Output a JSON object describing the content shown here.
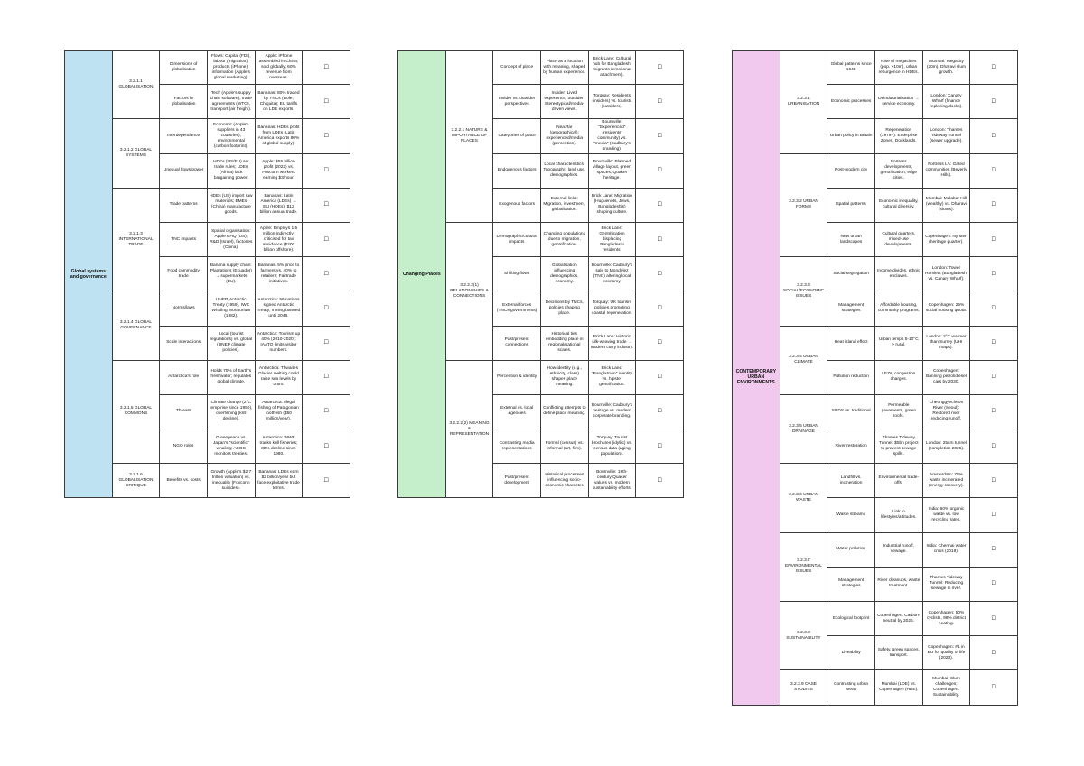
{
  "tables": [
    {
      "topic": "Global systems and governance",
      "groups": [
        {
          "subtopic": "3.2.1.1 GLOBALISATION",
          "rows": [
            [
              "Dimensions of globalisation",
              "Flows: Capital (FDI), labour (migration), products (iPhone), information (Apple's global marketing).",
              "Apple: iPhone assembled in China, sold globally; 60% revenue from overseas.",
              "☐"
            ],
            [
              "Factors in globalisation",
              "Tech (Apple's supply chain software), trade agreements (WTO), transport (air freight).",
              "Bananas: 80% traded by TNCs (Dole, Chiquita); EU tariffs on LDE exports.",
              "☐"
            ]
          ]
        },
        {
          "subtopic": "3.2.1.2 GLOBAL SYSTEMS",
          "rows": [
            [
              "Interdependence",
              "Economic (Apple's suppliers in 43 countries), environmental (carbon footprint).",
              "Bananas: HDEs profit from LDEs (Latin America exports 80% of global supply).",
              "☐"
            ],
            [
              "Unequal flows/power",
              "HDEs (US/EU) set trade rules; LDEs (Africa) lack bargaining power.",
              "Apple: $55 billion profit (2022) vs. Foxconn workers earning $3/hour.",
              "☐"
            ]
          ]
        },
        {
          "subtopic": "3.2.1.3 INTERNATIONAL TRADE",
          "rows": [
            [
              "Trade patterns",
              "HDEs (US) import raw materials; EMEs (China) manufacture goods.",
              "Bananas: Latin America (LDEs) → EU (HDEs); $12 billion annual trade.",
              "☐"
            ],
            [
              "TNC impacts",
              "Spatial organisation: Apple's HQ (US), R&D (Israel), factories (China).",
              "Apple: Employs 1.5 million indirectly; criticised for tax avoidance ($200 billion offshore).",
              "☐"
            ],
            [
              "Food commodity trade",
              "Banana supply chain: Plantations (Ecuador) → supermarkets (EU).",
              "Bananas: 5% price to farmers vs. 40% to retailers; Fairtrade initiatives.",
              "☐"
            ]
          ]
        },
        {
          "subtopic": "3.2.1.4 GLOBAL GOVERNANCE",
          "rows": [
            [
              "Norms/laws",
              "UNEP, Antarctic Treaty (1959), IWC Whaling Moratorium (1982).",
              "Antarctica: 56 nations signed Antarctic Treaty; mining banned until 2048.",
              "☐"
            ],
            [
              "Scale interactions",
              "Local (tourist regulations) vs. global (UNEP climate policies).",
              "Antarctica: Tourism up 40% (2010-2020); IAATO limits visitor numbers.",
              "☐"
            ]
          ]
        },
        {
          "subtopic": "3.2.1.5 GLOBAL COMMONS",
          "rows": [
            [
              "Antarctica's role",
              "Holds 70% of Earth's freshwater; regulates global climate.",
              "Antarctica: Thwaites Glacier melting could raise sea levels by 0.5m.",
              "☐"
            ],
            [
              "Threats",
              "Climate change (2°C temp rise since 1950), overfishing (krill decline).",
              "Antarctica: Illegal fishing of Patagonian toothfish ($50 million/year).",
              "☐"
            ],
            [
              "NGO roles",
              "Greenpeace vs. Japan's \"scientific\" whaling; ASOC monitors treaties.",
              "Antarctica: WWF tracks krill fisheries; 30% decline since 1980.",
              "☐"
            ]
          ]
        },
        {
          "subtopic": "3.2.1.6 GLOBALISATION CRITIQUE",
          "rows": [
            [
              "Benefits vs. costs",
              "Growth (Apple's $2.7 trillion valuation) vs. inequality (Foxconn suicides).",
              "Bananas: LDEs earn $2 billion/year but face exploitative trade terms.",
              "☐"
            ]
          ]
        }
      ]
    },
    {
      "topic": "Changing Places",
      "groups": [
        {
          "subtopic": "3.2.2.1 NATURE & IMPORTANCE OF PLACES",
          "rows": [
            [
              "Concept of place",
              "Place as a location with meaning, shaped by human experience.",
              "Brick Lane: Cultural hub for Bangladeshi migrants (emotional attachment).",
              "☐"
            ],
            [
              "Insider vs. outsider perspectives",
              "Insider: Lived experience; outsider: Stereotypical/media-driven views.",
              "Torquay: Residents (insiders) vs. tourists (outsiders).",
              "☐"
            ],
            [
              "Categories of place",
              "Near/far (geographical); experienced/media (perception).",
              "Bournville: \"Experienced\" (residents' community) vs. \"media\" (Cadbury's branding).",
              "☐"
            ],
            [
              "Endogenous factors",
              "Local characteristics: Topography, land use, demographics.",
              "Bournville: Planned village layout, green spaces, Quaker heritage.",
              "☐"
            ],
            [
              "Exogenous factors",
              "External links: Migration, investment, globalisation.",
              "Brick Lane: Migration (Huguenots, Jews, Bangladeshis) shaping culture.",
              "☐"
            ]
          ]
        },
        {
          "subtopic": "3.2.2.2(1) RELATIONSHIPS & CONNECTIONS",
          "rows": [
            [
              "Demographic/cultural impacts",
              "Changing populations due to migration, gentrification.",
              "Brick Lane: Gentrification displacing Bangladeshi residents.",
              "☐"
            ],
            [
              "Shifting flows",
              "Globalisation influencing demographics, economy.",
              "Bournville: Cadbury's sale to Mondelez (TNC) altering local economy.",
              "☐"
            ],
            [
              "External forces (TNCs/governments)",
              "Decisions by TNCs, policies shaping place.",
              "Torquay: UK tourism policies promoting coastal regeneration.",
              "☐"
            ],
            [
              "Past/present connections",
              "Historical ties embedding place in regional/national scales.",
              "Brick Lane: Historic silk-weaving trade → modern curry industry.",
              "☐"
            ]
          ]
        },
        {
          "subtopic": "3.2.2.2(2) MEANING & REPRESENTATION",
          "rows": [
            [
              "Perception & identity",
              "How identity (e.g., ethnicity, class) shapes place meaning.",
              "Brick Lane: \"Banglatown\" identity vs. hipster gentrification.",
              "☐"
            ],
            [
              "External vs. local agencies",
              "Conflicting attempts to define place meaning.",
              "Bournville: Cadbury's heritage vs. modern corporate branding.",
              "☐"
            ],
            [
              "Contrasting media representations",
              "Formal (census) vs. informal (art, film).",
              "Torquay: Tourist brochures (idyllic) vs. census data (aging population).",
              "☐"
            ],
            [
              "Past/present development",
              "Historical processes influencing socio-economic character.",
              "Bournville: 19th-century Quaker values vs. modern sustainability efforts.",
              "☐"
            ]
          ]
        }
      ]
    },
    {
      "topic": "CONTEMPORARY URBAN ENVIRONMENTS",
      "groups": [
        {
          "subtopic": "3.2.3.1 URBANISATION",
          "rows": [
            [
              "Global patterns since 1945",
              "Rise of megacities (pop. >10m), urban resurgence in HDEs.",
              "Mumbai: Megacity (20m), Dharavi slum growth.",
              "☐"
            ],
            [
              "Economic processes",
              "Deindustrialisation → service economy.",
              "London: Canary Wharf (finance replacing docks).",
              "☐"
            ],
            [
              "Urban policy in Britain",
              "Regeneration (1979+): Enterprise Zones, Docklands.",
              "London: Thames Tideway Tunnel (sewer upgrade).",
              "☐"
            ]
          ]
        },
        {
          "subtopic": "3.2.3.2 URBAN FORMS",
          "rows": [
            [
              "Post-modern city",
              "Fortress developments, gentrification, edge cities.",
              "Fortress LA: Gated communities (Beverly Hills).",
              "☐"
            ],
            [
              "Spatial patterns",
              "Economic inequality, cultural diversity.",
              "Mumbai: Malabar Hill (wealthy) vs. Dharavi (slums).",
              "☐"
            ],
            [
              "New urban landscapes",
              "Cultural quarters, mixed-use developments.",
              "Copenhagen: Nyhavn (heritage quarter).",
              "☐"
            ]
          ]
        },
        {
          "subtopic": "3.2.3.3 SOCIAL/ECONOMIC ISSUES",
          "rows": [
            [
              "Social segregation",
              "Income divides, ethnic enclaves.",
              "London: Tower Hamlets (Bangladeshi vs. Canary Wharf).",
              "☐"
            ],
            [
              "Management strategies",
              "Affordable housing, community programs.",
              "Copenhagen: 25% social housing quota.",
              "☐"
            ]
          ]
        },
        {
          "subtopic": "3.2.3.4 URBAN CLIMATE",
          "rows": [
            [
              "Heat island effect",
              "Urban temps 5-10°C > rural.",
              "London: 2°C warmer than Surrey (UHI maps).",
              "☐"
            ],
            [
              "Pollution reduction",
              "LEZs, congestion charges.",
              "Copenhagen: Banning petrol/diesel cars by 2030.",
              "☐"
            ]
          ]
        },
        {
          "subtopic": "3.2.3.5 URBAN DRAINAGE",
          "rows": [
            [
              "SUDS vs. traditional",
              "Permeable pavements, green roofs.",
              "Cheonggyecheon River (Seoul): Restored river reducing runoff.",
              "☐"
            ],
            [
              "River restoration",
              "Thames Tideway Tunnel: $5bn project to prevent sewage spills.",
              "London: 25km tunnel (completion 2025).",
              "☐"
            ]
          ]
        },
        {
          "subtopic": "3.2.3.6 URBAN WASTE",
          "rows": [
            [
              "Landfill vs. incineration",
              "Environmental trade-offs.",
              "Amsterdam: 79% waste incinerated (energy recovery).",
              "☐"
            ],
            [
              "Waste streams",
              "Link to lifestyles/attitudes.",
              "India: 60% organic waste vs. low recycling rates.",
              "☐"
            ]
          ]
        },
        {
          "subtopic": "3.2.3.7 ENVIRONMENTAL ISSUES",
          "rows": [
            [
              "Water pollution",
              "Industrial runoff, sewage.",
              "India: Chennai water crisis (2019).",
              "☐"
            ],
            [
              "Management strategies",
              "River cleanups, waste treatment.",
              "Thames Tideway Tunnel: Reducing sewage in river.",
              "☐"
            ]
          ]
        },
        {
          "subtopic": "3.2.3.8 SUSTAINABILITY",
          "rows": [
            [
              "Ecological footprint",
              "Copenhagen: Carbon-neutral by 2025.",
              "Copenhagen: 50% cyclists, 98% district heating.",
              "☐"
            ],
            [
              "Liveability",
              "Safety, green spaces, transport.",
              "Copenhagen: #1 in EU for quality of life (2023).",
              "☐"
            ]
          ]
        },
        {
          "subtopic": "3.2.3.9 CASE STUDIES",
          "rows": [
            [
              "Contrasting urban areas",
              "Mumbai (LDE) vs. Copenhagen (HDE).",
              "Mumbai: Slum challenges; Copenhagen: Sustainability.",
              "☐"
            ]
          ]
        }
      ]
    }
  ]
}
